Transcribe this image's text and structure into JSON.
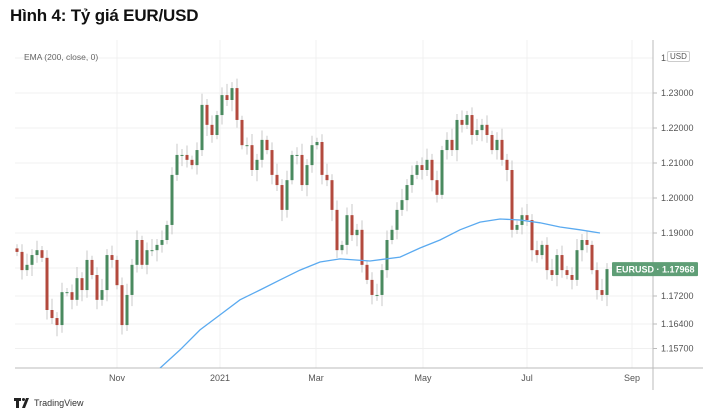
{
  "title": "Hình 4: Tỷ giá EUR/USD",
  "indicator_label": "EMA (200, close, 0)",
  "currency_label": "USD",
  "footer_brand": "TradingView",
  "colors": {
    "up": "#4a8a5f",
    "down": "#b34a3e",
    "wick": "#c8c8c8",
    "ema": "#5aaaf0",
    "price_tag": "#5f9e76",
    "grid": "#f0f0f0"
  },
  "chart_data": {
    "type": "candlestick",
    "title": "Hình 4: Tỷ giá EUR/USD",
    "symbol": "EURUSD",
    "last_price_label": "EURUSD · 1.17968",
    "last_price": 1.17968,
    "ylim": [
      1.152,
      1.245
    ],
    "y_ticks": [
      {
        "value": 1.23,
        "label": "1.23000"
      },
      {
        "value": 1.22,
        "label": "1.22000"
      },
      {
        "value": 1.21,
        "label": "1.21000"
      },
      {
        "value": 1.2,
        "label": "1.20000"
      },
      {
        "value": 1.19,
        "label": "1.19000"
      },
      {
        "value": 1.172,
        "label": "1.17200"
      },
      {
        "value": 1.164,
        "label": "1.16400"
      },
      {
        "value": 1.157,
        "label": "1.15700"
      }
    ],
    "top_tick_partial": "1.",
    "x_ticks": [
      {
        "index": 20,
        "label": "Nov"
      },
      {
        "index": 40.6,
        "label": "2021"
      },
      {
        "index": 59.8,
        "label": "Mar"
      },
      {
        "index": 81.2,
        "label": "May"
      },
      {
        "index": 102,
        "label": "Jul"
      },
      {
        "index": 123,
        "label": "Sep"
      }
    ],
    "close": [
      1.1846,
      1.1794,
      1.1809,
      1.1837,
      1.1851,
      1.1829,
      1.168,
      1.1657,
      1.1637,
      1.1731,
      1.1731,
      1.1709,
      1.1771,
      1.1737,
      1.1823,
      1.178,
      1.1709,
      1.1737,
      1.1837,
      1.1823,
      1.1751,
      1.1637,
      1.1723,
      1.1809,
      1.188,
      1.1809,
      1.1851,
      1.1851,
      1.1866,
      1.188,
      1.1923,
      1.2066,
      1.2123,
      1.2123,
      1.2109,
      1.2094,
      1.2137,
      1.2266,
      1.2209,
      1.218,
      1.2237,
      1.2294,
      1.228,
      1.2314,
      1.2223,
      1.2151,
      1.2151,
      1.208,
      1.2109,
      1.2166,
      1.2137,
      1.2066,
      1.2037,
      1.1966,
      1.2051,
      1.2123,
      1.2123,
      1.2037,
      1.2094,
      1.2151,
      1.216,
      1.2066,
      1.2051,
      1.1966,
      1.1851,
      1.1866,
      1.1951,
      1.1894,
      1.1909,
      1.1809,
      1.1766,
      1.1723,
      1.1723,
      1.1794,
      1.188,
      1.1909,
      1.1966,
      1.1994,
      1.2037,
      1.2066,
      1.2094,
      1.208,
      1.2109,
      1.2051,
      1.2009,
      1.2137,
      1.2166,
      1.2137,
      1.2223,
      1.2209,
      1.2237,
      1.218,
      1.2194,
      1.2209,
      1.218,
      1.2137,
      1.2166,
      1.2109,
      1.208,
      1.1909,
      1.1923,
      1.1951,
      1.1937,
      1.1851,
      1.1837,
      1.1866,
      1.1794,
      1.178,
      1.1837,
      1.1794,
      1.178,
      1.1766,
      1.1851,
      1.188,
      1.1866,
      1.1794,
      1.1737,
      1.1723,
      1.17968
    ],
    "ema_series": {
      "name": "EMA (200, close, 0)",
      "points": [
        [
          28.6,
          1.1514
        ],
        [
          32.6,
          1.1566
        ],
        [
          36.6,
          1.1623
        ],
        [
          40.6,
          1.1666
        ],
        [
          44.6,
          1.1709
        ],
        [
          48.6,
          1.1737
        ],
        [
          52.6,
          1.1766
        ],
        [
          56.6,
          1.1794
        ],
        [
          60.6,
          1.1817
        ],
        [
          64.6,
          1.1826
        ],
        [
          70.6,
          1.182
        ],
        [
          76.6,
          1.1831
        ],
        [
          80.6,
          1.1857
        ],
        [
          84.6,
          1.188
        ],
        [
          88.6,
          1.1909
        ],
        [
          92.6,
          1.1931
        ],
        [
          96.6,
          1.194
        ],
        [
          100.6,
          1.1937
        ],
        [
          104.6,
          1.1929
        ],
        [
          108.6,
          1.1917
        ],
        [
          112.6,
          1.1909
        ],
        [
          116.6,
          1.19
        ]
      ]
    }
  }
}
